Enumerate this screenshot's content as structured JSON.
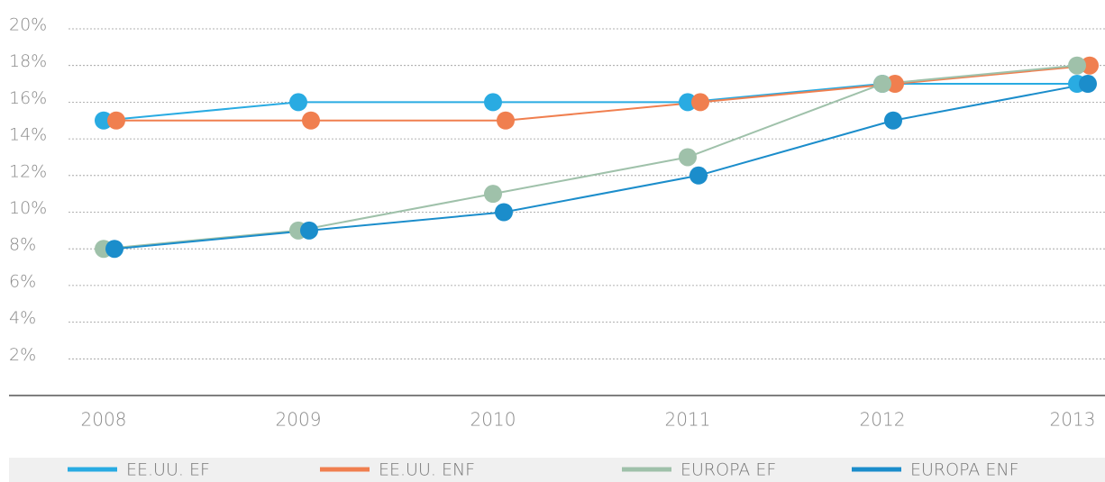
{
  "chart_data": {
    "type": "line",
    "categories": [
      "2008",
      "2009",
      "2010",
      "2011",
      "2012",
      "2013"
    ],
    "series": [
      {
        "name": "EE.UU. EF",
        "color": "#29abe2",
        "values": [
          15,
          16,
          16,
          16,
          17,
          17
        ]
      },
      {
        "name": "EE.UU. ENF",
        "color": "#f07f4f",
        "values": [
          15,
          15,
          15,
          16,
          17,
          18
        ]
      },
      {
        "name": "EUROPA EF",
        "color": "#9fc1aa",
        "values": [
          8,
          9,
          11,
          13,
          17,
          18
        ]
      },
      {
        "name": "EUROPA ENF",
        "color": "#1b8dcb",
        "values": [
          8,
          9,
          10,
          12,
          15,
          17
        ]
      }
    ],
    "ylim": [
      0,
      20
    ],
    "yticks": [
      {
        "value": 2,
        "label": "2%"
      },
      {
        "value": 4,
        "label": "4%"
      },
      {
        "value": 6,
        "label": "6%"
      },
      {
        "value": 8,
        "label": "8%"
      },
      {
        "value": 10,
        "label": "10%"
      },
      {
        "value": 12,
        "label": "12%"
      },
      {
        "value": 14,
        "label": "14%"
      },
      {
        "value": 16,
        "label": "16%"
      },
      {
        "value": 18,
        "label": "18%"
      },
      {
        "value": 20,
        "label": "20%"
      }
    ],
    "grid": true,
    "legend": "bottom"
  }
}
